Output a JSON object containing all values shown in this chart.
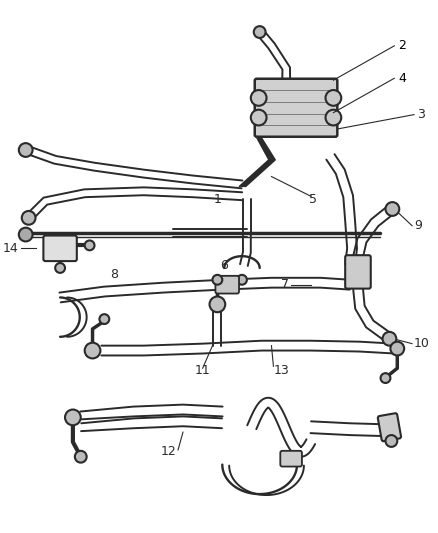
{
  "background_color": "#ffffff",
  "line_color": "#2a2a2a",
  "label_color": "#000000",
  "figsize": [
    4.38,
    5.33
  ],
  "dpi": 100
}
